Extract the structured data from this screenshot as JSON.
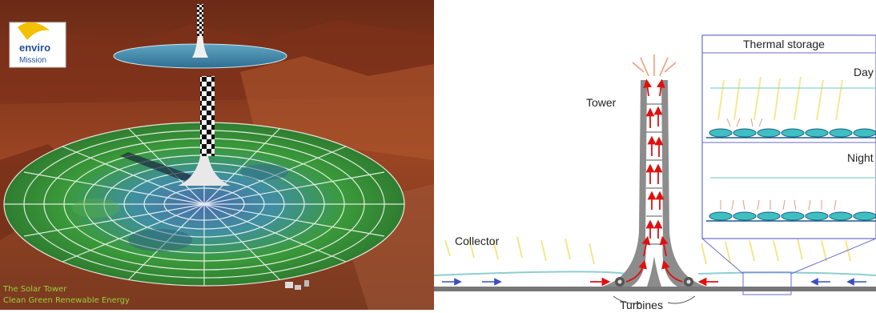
{
  "photo": {
    "logo_text_1": "enviro",
    "logo_text_2": "Mission",
    "caption_line1": "The Solar Tower",
    "caption_line2": "Clean Green Renewable Energy",
    "colors": {
      "desert": "#8a3a1e",
      "collector": "#3f8f3a",
      "tower_check": "#111111"
    }
  },
  "diagram": {
    "labels": {
      "tower": "Tower",
      "collector": "Collector",
      "turbines": "Turbines",
      "thermal_storage": "Thermal storage",
      "day": "Day",
      "night": "Night"
    },
    "colors": {
      "tower_wall": "#8c8c8c",
      "arrow_red": "#e01010",
      "arrow_blue": "#3a4fc0",
      "sun_ray": "#f0e060",
      "storage_cell": "#3fc0c0",
      "storage_frame": "#6a6ad0"
    }
  }
}
